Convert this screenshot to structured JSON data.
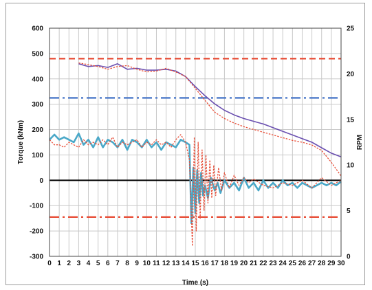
{
  "chart_data": {
    "type": "line",
    "title": "",
    "xlabel": "Time (s)",
    "ylabel_left": "Torque (kNm)",
    "ylabel_right": "RPM",
    "xlim": [
      0,
      30
    ],
    "ylim_left": [
      -300,
      600
    ],
    "ylim_right": [
      0,
      25
    ],
    "x_ticks": [
      "0",
      "1",
      "2",
      "3",
      "4",
      "5",
      "6",
      "7",
      "8",
      "9",
      "10",
      "11",
      "12",
      "13",
      "14",
      "15",
      "16",
      "17",
      "18",
      "19",
      "20",
      "21",
      "22",
      "23",
      "24",
      "25",
      "26",
      "27",
      "28",
      "29",
      "30"
    ],
    "y_ticks_left": [
      "-300",
      "-200",
      "-100",
      "0",
      "100",
      "200",
      "300",
      "400",
      "500",
      "600"
    ],
    "y_ticks_right": [
      "0",
      "5",
      "10",
      "15",
      "20",
      "25"
    ],
    "grid": true,
    "legend": "none",
    "reference_lines": [
      {
        "axis": "left",
        "value": 480,
        "style": "dashed",
        "color": "#e8503a"
      },
      {
        "axis": "left",
        "value": 325,
        "style": "dash-dot",
        "color": "#4a78c8"
      },
      {
        "axis": "left",
        "value": -145,
        "style": "dash-dot",
        "color": "#e8503a"
      },
      {
        "axis": "left",
        "value": 0,
        "style": "solid",
        "color": "#000000"
      }
    ],
    "series": [
      {
        "axis": "right",
        "color": "#6a4fb0",
        "style": "solid",
        "x": [
          3,
          4,
          5,
          6,
          7,
          8,
          9,
          10,
          11,
          12,
          13,
          14,
          15,
          16,
          17,
          18,
          19,
          20,
          21,
          22,
          23,
          24,
          25,
          26,
          27,
          28,
          29,
          30
        ],
        "values": [
          21.1,
          20.8,
          20.9,
          20.7,
          21.1,
          20.5,
          20.6,
          20.4,
          20.4,
          20.5,
          20.3,
          19.7,
          18.6,
          17.6,
          16.7,
          16.0,
          15.5,
          15.1,
          14.8,
          14.5,
          14.1,
          13.7,
          13.3,
          12.9,
          12.5,
          11.9,
          11.3,
          10.9
        ]
      },
      {
        "axis": "right",
        "color": "#e8503a",
        "style": "dotted",
        "x": [
          3,
          4,
          5,
          6,
          7,
          8,
          9,
          10,
          11,
          12,
          13,
          14,
          15,
          16,
          17,
          18,
          19,
          20,
          21,
          22,
          23,
          24,
          25,
          26,
          27,
          28,
          29,
          30
        ],
        "values": [
          21.2,
          21.0,
          20.8,
          20.5,
          20.8,
          20.9,
          20.5,
          20.2,
          20.3,
          20.6,
          20.2,
          19.7,
          18.4,
          17.1,
          15.8,
          15.1,
          14.6,
          14.2,
          13.9,
          13.6,
          13.3,
          13.0,
          12.7,
          12.5,
          12.2,
          11.6,
          10.3,
          8.8
        ]
      },
      {
        "axis": "left",
        "color": "#4aa8c8",
        "style": "solid",
        "x": [
          0,
          0.5,
          1,
          1.5,
          2,
          2.5,
          3,
          3.5,
          4,
          4.5,
          5,
          5.5,
          6,
          6.5,
          7,
          7.5,
          8,
          8.5,
          9,
          9.5,
          10,
          10.5,
          11,
          11.5,
          12,
          12.5,
          13,
          13.5,
          14,
          14.4,
          14.6,
          14.8,
          15.0,
          15.2,
          15.4,
          15.6,
          15.8,
          16,
          16.3,
          16.6,
          17,
          17.3,
          17.6,
          18,
          18.5,
          19,
          19.5,
          20,
          20.5,
          21,
          21.5,
          22,
          22.5,
          23,
          23.5,
          24,
          24.5,
          25,
          25.5,
          26,
          26.5,
          27,
          27.5,
          28,
          28.5,
          29,
          29.5,
          30
        ],
        "values": [
          160,
          180,
          160,
          170,
          160,
          150,
          185,
          140,
          160,
          130,
          170,
          130,
          160,
          150,
          130,
          160,
          120,
          160,
          150,
          130,
          160,
          130,
          150,
          120,
          150,
          140,
          130,
          160,
          150,
          140,
          -170,
          50,
          -130,
          40,
          -90,
          30,
          -60,
          -20,
          -70,
          10,
          -40,
          -10,
          -50,
          0,
          -30,
          -10,
          -40,
          10,
          -30,
          -10,
          -40,
          0,
          -30,
          -10,
          -30,
          0,
          -20,
          -10,
          -30,
          -10,
          -20,
          -30,
          -20,
          -10,
          -20,
          -10,
          -20,
          -5
        ]
      },
      {
        "axis": "left",
        "color": "#e8503a",
        "style": "dotted",
        "x": [
          0,
          0.5,
          1,
          1.5,
          2,
          2.5,
          3,
          3.5,
          4,
          4.5,
          5,
          5.5,
          6,
          6.5,
          7,
          7.5,
          8,
          8.5,
          9,
          9.5,
          10,
          10.5,
          11,
          11.5,
          12,
          12.5,
          13,
          13.5,
          14,
          14.4,
          14.7,
          14.9,
          15.1,
          15.3,
          15.5,
          15.7,
          15.9,
          16.1,
          16.3,
          16.5,
          16.7,
          16.9,
          17.1,
          17.4,
          17.7,
          18,
          18.5,
          19,
          19.5,
          20,
          20.5,
          21,
          22,
          23,
          24,
          25,
          26,
          27,
          28,
          29,
          30
        ],
        "values": [
          160,
          140,
          140,
          130,
          150,
          140,
          130,
          160,
          140,
          150,
          140,
          160,
          140,
          170,
          130,
          150,
          140,
          150,
          160,
          130,
          150,
          140,
          160,
          140,
          150,
          130,
          160,
          180,
          150,
          80,
          -260,
          170,
          -200,
          150,
          -150,
          120,
          -120,
          100,
          -90,
          80,
          -70,
          60,
          -60,
          50,
          -40,
          30,
          -30,
          20,
          -20,
          10,
          -10,
          5,
          -20,
          -30,
          -10,
          -20,
          0,
          -30,
          10,
          -20,
          0
        ]
      }
    ]
  }
}
